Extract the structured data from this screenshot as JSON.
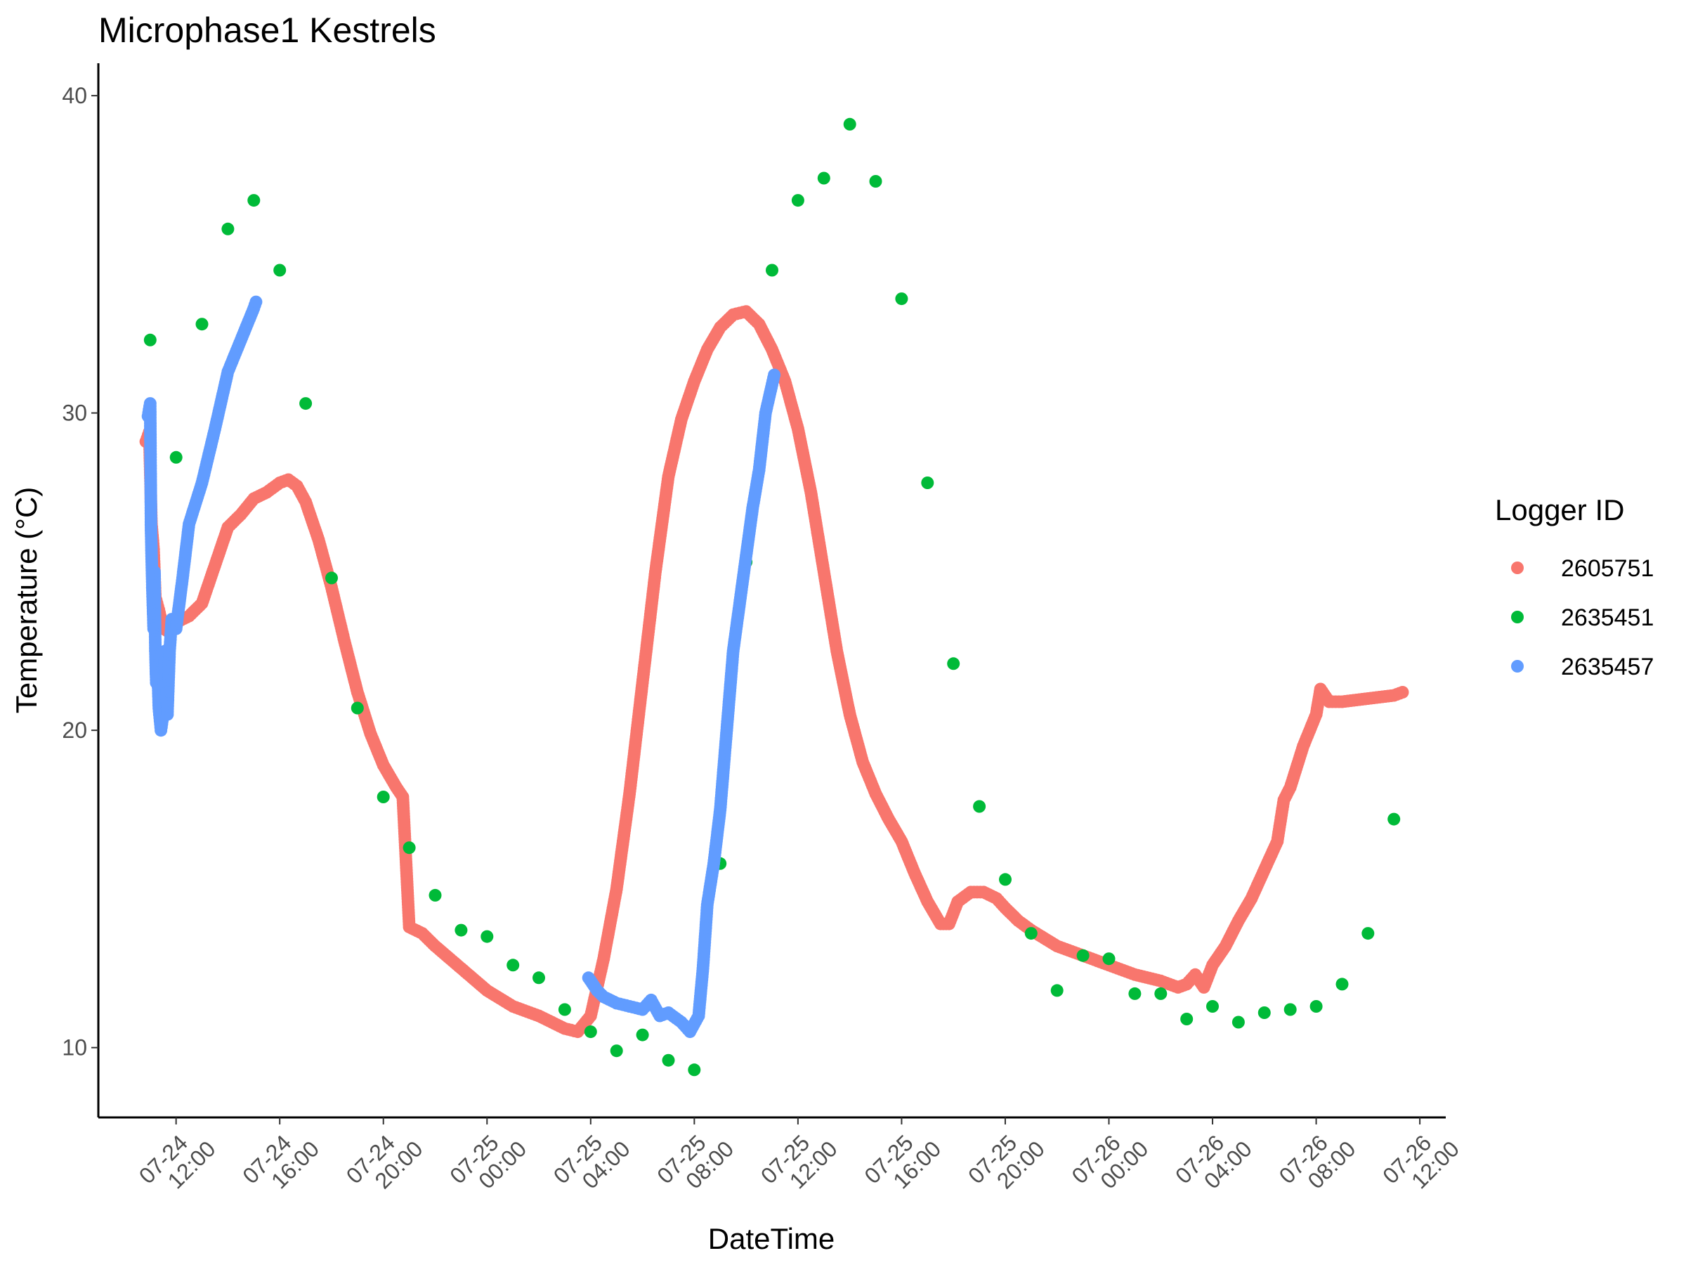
{
  "chart_data": {
    "type": "scatter",
    "title": "Microphase1 Kestrels",
    "xlabel": "DateTime",
    "ylabel": "Temperature (°C)",
    "x_unit": "datetime",
    "xlim": [
      "2025-07-24 09:00",
      "2025-07-26 13:00"
    ],
    "ylim": [
      7.8,
      40.8
    ],
    "y_ticks": [
      10,
      20,
      30,
      40
    ],
    "x_ticks": [
      {
        "x": "2025-07-24 12:00",
        "line1": "07-24",
        "line2": "12:00"
      },
      {
        "x": "2025-07-24 16:00",
        "line1": "07-24",
        "line2": "16:00"
      },
      {
        "x": "2025-07-24 20:00",
        "line1": "07-24",
        "line2": "20:00"
      },
      {
        "x": "2025-07-25 00:00",
        "line1": "07-25",
        "line2": "00:00"
      },
      {
        "x": "2025-07-25 04:00",
        "line1": "07-25",
        "line2": "04:00"
      },
      {
        "x": "2025-07-25 08:00",
        "line1": "07-25",
        "line2": "08:00"
      },
      {
        "x": "2025-07-25 12:00",
        "line1": "07-25",
        "line2": "12:00"
      },
      {
        "x": "2025-07-25 16:00",
        "line1": "07-25",
        "line2": "16:00"
      },
      {
        "x": "2025-07-25 20:00",
        "line1": "07-25",
        "line2": "20:00"
      },
      {
        "x": "2025-07-26 00:00",
        "line1": "07-26",
        "line2": "00:00"
      },
      {
        "x": "2025-07-26 04:00",
        "line1": "07-26",
        "line2": "04:00"
      },
      {
        "x": "2025-07-26 08:00",
        "line1": "07-26",
        "line2": "08:00"
      },
      {
        "x": "2025-07-26 12:00",
        "line1": "07-26",
        "line2": "12:00"
      }
    ],
    "grid": false,
    "legend": {
      "title": "Logger ID",
      "position": "right"
    },
    "series": [
      {
        "name": "2605751",
        "color": "#F8766D",
        "mode": "dense",
        "points": [
          [
            "2025-07-24 10:50",
            29.1
          ],
          [
            "2025-07-24 10:58",
            29.4
          ],
          [
            "2025-07-24 11:03",
            26.5
          ],
          [
            "2025-07-24 11:08",
            25.7
          ],
          [
            "2025-07-24 11:12",
            24.2
          ],
          [
            "2025-07-24 11:20",
            23.8
          ],
          [
            "2025-07-24 11:30",
            23.2
          ],
          [
            "2025-07-24 11:45",
            23.1
          ],
          [
            "2025-07-24 12:00",
            23.4
          ],
          [
            "2025-07-24 12:30",
            23.6
          ],
          [
            "2025-07-24 13:00",
            24.0
          ],
          [
            "2025-07-24 13:30",
            25.2
          ],
          [
            "2025-07-24 14:00",
            26.4
          ],
          [
            "2025-07-24 14:30",
            26.8
          ],
          [
            "2025-07-24 15:00",
            27.3
          ],
          [
            "2025-07-24 15:30",
            27.5
          ],
          [
            "2025-07-24 16:00",
            27.8
          ],
          [
            "2025-07-24 16:20",
            27.9
          ],
          [
            "2025-07-24 16:40",
            27.7
          ],
          [
            "2025-07-24 17:00",
            27.2
          ],
          [
            "2025-07-24 17:30",
            26.0
          ],
          [
            "2025-07-24 18:00",
            24.5
          ],
          [
            "2025-07-24 18:30",
            22.8
          ],
          [
            "2025-07-24 19:00",
            21.2
          ],
          [
            "2025-07-24 19:30",
            19.9
          ],
          [
            "2025-07-24 20:00",
            18.9
          ],
          [
            "2025-07-24 20:30",
            18.2
          ],
          [
            "2025-07-24 20:45",
            17.9
          ],
          [
            "2025-07-24 21:00",
            13.8
          ],
          [
            "2025-07-24 21:30",
            13.6
          ],
          [
            "2025-07-24 22:00",
            13.2
          ],
          [
            "2025-07-24 23:00",
            12.5
          ],
          [
            "2025-07-25 00:00",
            11.8
          ],
          [
            "2025-07-25 01:00",
            11.3
          ],
          [
            "2025-07-25 02:00",
            11.0
          ],
          [
            "2025-07-25 03:00",
            10.6
          ],
          [
            "2025-07-25 03:30",
            10.5
          ],
          [
            "2025-07-25 04:00",
            11.0
          ],
          [
            "2025-07-25 04:30",
            12.8
          ],
          [
            "2025-07-25 05:00",
            15.0
          ],
          [
            "2025-07-25 05:30",
            18.0
          ],
          [
            "2025-07-25 06:00",
            21.5
          ],
          [
            "2025-07-25 06:30",
            25.0
          ],
          [
            "2025-07-25 07:00",
            28.0
          ],
          [
            "2025-07-25 07:30",
            29.8
          ],
          [
            "2025-07-25 08:00",
            31.0
          ],
          [
            "2025-07-25 08:30",
            32.0
          ],
          [
            "2025-07-25 09:00",
            32.7
          ],
          [
            "2025-07-25 09:30",
            33.1
          ],
          [
            "2025-07-25 10:00",
            33.2
          ],
          [
            "2025-07-25 10:30",
            32.8
          ],
          [
            "2025-07-25 11:00",
            32.0
          ],
          [
            "2025-07-25 11:30",
            31.0
          ],
          [
            "2025-07-25 12:00",
            29.5
          ],
          [
            "2025-07-25 12:30",
            27.5
          ],
          [
            "2025-07-25 13:00",
            25.0
          ],
          [
            "2025-07-25 13:30",
            22.5
          ],
          [
            "2025-07-25 14:00",
            20.5
          ],
          [
            "2025-07-25 14:30",
            19.0
          ],
          [
            "2025-07-25 15:00",
            18.0
          ],
          [
            "2025-07-25 15:30",
            17.2
          ],
          [
            "2025-07-25 16:00",
            16.5
          ],
          [
            "2025-07-25 16:30",
            15.5
          ],
          [
            "2025-07-25 17:00",
            14.6
          ],
          [
            "2025-07-25 17:30",
            13.9
          ],
          [
            "2025-07-25 17:50",
            13.9
          ],
          [
            "2025-07-25 18:10",
            14.6
          ],
          [
            "2025-07-25 18:40",
            14.9
          ],
          [
            "2025-07-25 19:10",
            14.9
          ],
          [
            "2025-07-25 19:40",
            14.7
          ],
          [
            "2025-07-25 20:00",
            14.4
          ],
          [
            "2025-07-25 20:30",
            14.0
          ],
          [
            "2025-07-25 21:00",
            13.7
          ],
          [
            "2025-07-25 22:00",
            13.2
          ],
          [
            "2025-07-25 23:00",
            12.9
          ],
          [
            "2025-07-26 00:00",
            12.6
          ],
          [
            "2025-07-26 01:00",
            12.3
          ],
          [
            "2025-07-26 02:00",
            12.1
          ],
          [
            "2025-07-26 02:40",
            11.9
          ],
          [
            "2025-07-26 03:00",
            12.0
          ],
          [
            "2025-07-26 03:20",
            12.3
          ],
          [
            "2025-07-26 03:40",
            11.9
          ],
          [
            "2025-07-26 04:00",
            12.6
          ],
          [
            "2025-07-26 04:30",
            13.2
          ],
          [
            "2025-07-26 05:00",
            14.0
          ],
          [
            "2025-07-26 05:30",
            14.7
          ],
          [
            "2025-07-26 06:00",
            15.6
          ],
          [
            "2025-07-26 06:30",
            16.5
          ],
          [
            "2025-07-26 06:45",
            17.8
          ],
          [
            "2025-07-26 07:00",
            18.2
          ],
          [
            "2025-07-26 07:30",
            19.5
          ],
          [
            "2025-07-26 08:00",
            20.5
          ],
          [
            "2025-07-26 08:10",
            21.3
          ],
          [
            "2025-07-26 08:30",
            20.9
          ],
          [
            "2025-07-26 09:00",
            20.9
          ],
          [
            "2025-07-26 10:00",
            21.0
          ],
          [
            "2025-07-26 11:00",
            21.1
          ],
          [
            "2025-07-26 11:20",
            21.2
          ]
        ]
      },
      {
        "name": "2635451",
        "color": "#00BA38",
        "mode": "points",
        "points": [
          [
            "2025-07-24 11:00",
            32.3
          ],
          [
            "2025-07-24 12:00",
            28.6
          ],
          [
            "2025-07-24 13:00",
            32.8
          ],
          [
            "2025-07-24 14:00",
            35.8
          ],
          [
            "2025-07-24 15:00",
            36.7
          ],
          [
            "2025-07-24 16:00",
            34.5
          ],
          [
            "2025-07-24 17:00",
            30.3
          ],
          [
            "2025-07-24 18:00",
            24.8
          ],
          [
            "2025-07-24 19:00",
            20.7
          ],
          [
            "2025-07-24 20:00",
            17.9
          ],
          [
            "2025-07-24 21:00",
            16.3
          ],
          [
            "2025-07-24 22:00",
            14.8
          ],
          [
            "2025-07-24 23:00",
            13.7
          ],
          [
            "2025-07-25 00:00",
            13.5
          ],
          [
            "2025-07-25 01:00",
            12.6
          ],
          [
            "2025-07-25 02:00",
            12.2
          ],
          [
            "2025-07-25 03:00",
            11.2
          ],
          [
            "2025-07-25 04:00",
            10.5
          ],
          [
            "2025-07-25 05:00",
            9.9
          ],
          [
            "2025-07-25 06:00",
            10.4
          ],
          [
            "2025-07-25 07:00",
            9.6
          ],
          [
            "2025-07-25 08:00",
            9.3
          ],
          [
            "2025-07-25 09:00",
            15.8
          ],
          [
            "2025-07-25 10:00",
            25.3
          ],
          [
            "2025-07-25 11:00",
            34.5
          ],
          [
            "2025-07-25 12:00",
            36.7
          ],
          [
            "2025-07-25 13:00",
            37.4
          ],
          [
            "2025-07-25 14:00",
            39.1
          ],
          [
            "2025-07-25 15:00",
            37.3
          ],
          [
            "2025-07-25 16:00",
            33.6
          ],
          [
            "2025-07-25 17:00",
            27.8
          ],
          [
            "2025-07-25 18:00",
            22.1
          ],
          [
            "2025-07-25 19:00",
            17.6
          ],
          [
            "2025-07-25 20:00",
            15.3
          ],
          [
            "2025-07-25 21:00",
            13.6
          ],
          [
            "2025-07-25 22:00",
            11.8
          ],
          [
            "2025-07-25 23:00",
            12.9
          ],
          [
            "2025-07-26 00:00",
            12.8
          ],
          [
            "2025-07-26 01:00",
            11.7
          ],
          [
            "2025-07-26 02:00",
            11.7
          ],
          [
            "2025-07-26 03:00",
            10.9
          ],
          [
            "2025-07-26 04:00",
            11.3
          ],
          [
            "2025-07-26 05:00",
            10.8
          ],
          [
            "2025-07-26 06:00",
            11.1
          ],
          [
            "2025-07-26 07:00",
            11.2
          ],
          [
            "2025-07-26 08:00",
            11.3
          ],
          [
            "2025-07-26 09:00",
            12.0
          ],
          [
            "2025-07-26 10:00",
            13.6
          ],
          [
            "2025-07-26 11:00",
            17.2
          ]
        ]
      },
      {
        "name": "2635457",
        "color": "#619CFF",
        "mode": "dense",
        "points": [
          [
            "2025-07-24 10:55",
            29.9
          ],
          [
            "2025-07-24 11:00",
            30.3
          ],
          [
            "2025-07-24 11:02",
            26.3
          ],
          [
            "2025-07-24 11:05",
            24.5
          ],
          [
            "2025-07-24 11:08",
            23.2
          ],
          [
            "2025-07-24 11:10",
            25.0
          ],
          [
            "2025-07-24 11:12",
            22.5
          ],
          [
            "2025-07-24 11:14",
            21.5
          ],
          [
            "2025-07-24 11:17",
            22.0
          ],
          [
            "2025-07-24 11:20",
            20.7
          ],
          [
            "2025-07-24 11:25",
            20.0
          ],
          [
            "2025-07-24 11:30",
            20.5
          ],
          [
            "2025-07-24 11:35",
            22.5
          ],
          [
            "2025-07-24 11:40",
            20.5
          ],
          [
            "2025-07-24 11:45",
            22.5
          ],
          [
            "2025-07-24 11:50",
            23.5
          ],
          [
            "2025-07-24 12:00",
            23.2
          ],
          [
            "2025-07-24 12:15",
            24.8
          ],
          [
            "2025-07-24 12:30",
            26.5
          ],
          [
            "2025-07-24 13:00",
            27.8
          ],
          [
            "2025-07-24 13:30",
            29.5
          ],
          [
            "2025-07-24 14:00",
            31.3
          ],
          [
            "2025-07-24 14:30",
            32.3
          ],
          [
            "2025-07-24 15:00",
            33.3
          ],
          [
            "2025-07-24 15:05",
            33.5
          ],
          [
            "2025-07-25 03:55",
            12.2
          ],
          [
            "2025-07-25 04:15",
            11.8
          ],
          [
            "2025-07-25 04:30",
            11.6
          ],
          [
            "2025-07-25 05:00",
            11.4
          ],
          [
            "2025-07-25 05:30",
            11.3
          ],
          [
            "2025-07-25 06:00",
            11.2
          ],
          [
            "2025-07-25 06:20",
            11.5
          ],
          [
            "2025-07-25 06:40",
            11.0
          ],
          [
            "2025-07-25 07:00",
            11.1
          ],
          [
            "2025-07-25 07:30",
            10.8
          ],
          [
            "2025-07-25 07:50",
            10.5
          ],
          [
            "2025-07-25 08:10",
            11.0
          ],
          [
            "2025-07-25 08:20",
            12.5
          ],
          [
            "2025-07-25 08:30",
            14.5
          ],
          [
            "2025-07-25 08:45",
            15.8
          ],
          [
            "2025-07-25 09:00",
            17.5
          ],
          [
            "2025-07-25 09:15",
            20.0
          ],
          [
            "2025-07-25 09:30",
            22.5
          ],
          [
            "2025-07-25 09:45",
            24.0
          ],
          [
            "2025-07-25 10:00",
            25.5
          ],
          [
            "2025-07-25 10:15",
            27.0
          ],
          [
            "2025-07-25 10:30",
            28.2
          ],
          [
            "2025-07-25 10:45",
            30.0
          ],
          [
            "2025-07-25 11:00",
            30.9
          ],
          [
            "2025-07-25 11:05",
            31.2
          ]
        ]
      }
    ]
  }
}
